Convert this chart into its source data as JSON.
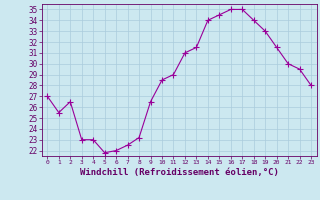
{
  "x": [
    0,
    1,
    2,
    3,
    4,
    5,
    6,
    7,
    8,
    9,
    10,
    11,
    12,
    13,
    14,
    15,
    16,
    17,
    18,
    19,
    20,
    21,
    22,
    23
  ],
  "y": [
    27,
    25.5,
    26.5,
    23,
    23,
    21.8,
    22,
    22.5,
    23.2,
    26.5,
    28.5,
    29,
    31,
    31.5,
    34,
    34.5,
    35,
    35,
    34,
    33,
    31.5,
    30,
    29.5,
    28
  ],
  "line_color": "#990099",
  "marker": "+",
  "marker_size": 4,
  "bg_color": "#cce8f0",
  "grid_color": "#aaccdd",
  "xlabel": "Windchill (Refroidissement éolien,°C)",
  "xlabel_color": "#660066",
  "xlabel_fontsize": 6.5,
  "tick_label_color": "#660066",
  "ylim": [
    21.5,
    35.5
  ],
  "xlim": [
    -0.5,
    23.5
  ],
  "yticks": [
    22,
    23,
    24,
    25,
    26,
    27,
    28,
    29,
    30,
    31,
    32,
    33,
    34,
    35
  ],
  "xticks": [
    0,
    1,
    2,
    3,
    4,
    5,
    6,
    7,
    8,
    9,
    10,
    11,
    12,
    13,
    14,
    15,
    16,
    17,
    18,
    19,
    20,
    21,
    22,
    23
  ]
}
